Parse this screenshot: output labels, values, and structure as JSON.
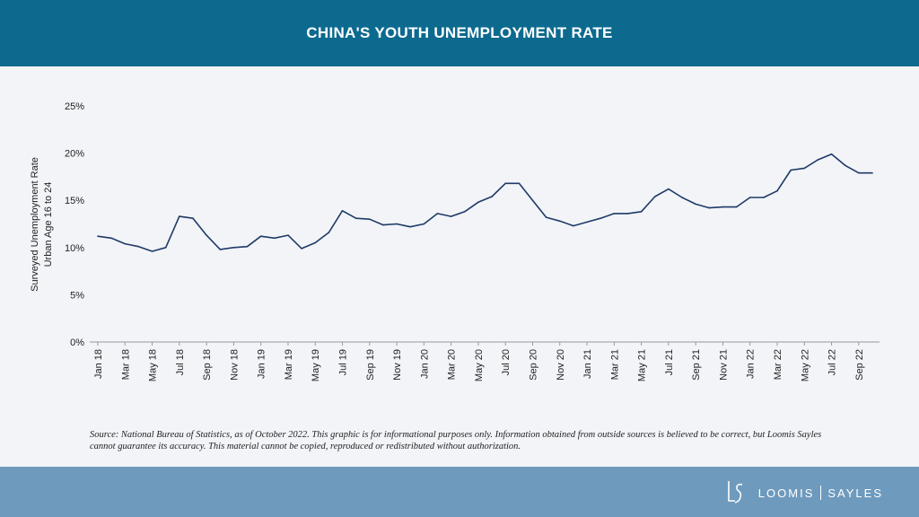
{
  "header": {
    "title": "CHINA'S YOUTH UNEMPLOYMENT RATE"
  },
  "colors": {
    "header_bg": "#0d6a8f",
    "footer_bg": "#6e9abd",
    "line": "#1f3a66",
    "background": "#f2f4f8"
  },
  "chart_data": {
    "type": "line",
    "ylabel_lines": [
      "Surveyed Unemployment Rate",
      "Urban Age 16 to 24"
    ],
    "ylim": [
      0,
      25
    ],
    "y_ticks": [
      "0%",
      "5%",
      "10%",
      "15%",
      "20%",
      "25%"
    ],
    "x_tick_labels": [
      "Jan 18",
      "Mar 18",
      "May 18",
      "Jul 18",
      "Sep 18",
      "Nov 18",
      "Jan 19",
      "Mar 19",
      "May 19",
      "Jul 19",
      "Sep 19",
      "Nov 19",
      "Jan 20",
      "Mar 20",
      "May 20",
      "Jul 20",
      "Sep 20",
      "Nov 20",
      "Jan 21",
      "Mar 21",
      "May 21",
      "Jul 21",
      "Sep 21",
      "Nov 21",
      "Jan 22",
      "Mar 22",
      "May 22",
      "Jul 22",
      "Sep 22"
    ],
    "series": [
      {
        "name": "Youth unemployment rate",
        "values": [
          11.2,
          11.0,
          10.4,
          10.1,
          9.6,
          10.0,
          13.3,
          13.1,
          11.3,
          9.8,
          10.0,
          10.1,
          11.2,
          11.0,
          11.3,
          9.9,
          10.5,
          11.6,
          13.9,
          13.1,
          13.0,
          12.4,
          12.5,
          12.2,
          12.5,
          13.6,
          13.3,
          13.8,
          14.8,
          15.4,
          16.8,
          16.8,
          15.0,
          13.2,
          12.8,
          12.3,
          12.7,
          13.1,
          13.6,
          13.6,
          13.8,
          15.4,
          16.2,
          15.3,
          14.6,
          14.2,
          14.3,
          14.3,
          15.3,
          15.3,
          16.0,
          18.2,
          18.4,
          19.3,
          19.9,
          18.7,
          17.9,
          17.9
        ]
      }
    ]
  },
  "source_note": "Source: National Bureau of Statistics, as of October 2022. This graphic is for informational purposes only. Information obtained from outside sources is believed to be correct, but Loomis Sayles cannot guarantee its accuracy. This material cannot be copied, reproduced or redistributed without authorization.",
  "footer": {
    "logo_name_1": "LOOMIS",
    "logo_name_2": "SAYLES"
  }
}
